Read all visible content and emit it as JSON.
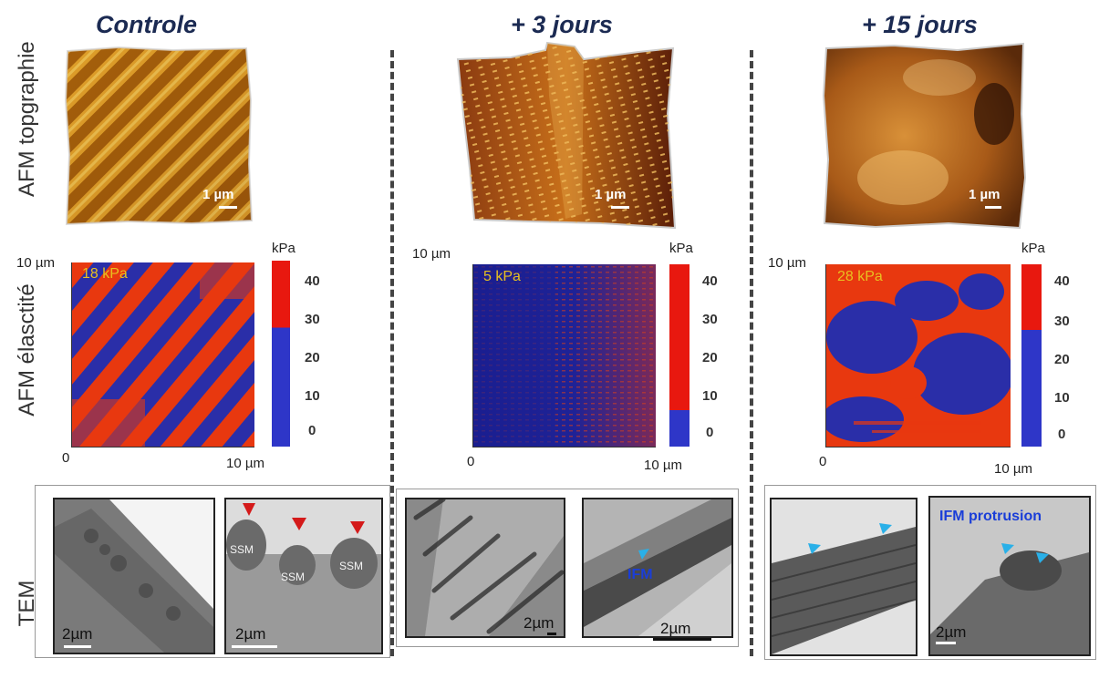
{
  "columns": [
    {
      "title": "Controle",
      "topo_scale": "1 µm",
      "kpa": "18 kPa",
      "ax_left": "0",
      "ax_right": "10 µm",
      "ax_top": "10 µm",
      "kpa_color": "#e8c020",
      "tem_scale_a": "2µm",
      "tem_scale_b": "2µm",
      "ssm": [
        "SSM",
        "SSM",
        "SSM"
      ]
    },
    {
      "title": "+ 3 jours",
      "topo_scale": "1 µm",
      "kpa": "5 kPa",
      "ax_left": "0",
      "ax_right": "10 µm",
      "ax_top": "10 µm",
      "kpa_color": "#e8c020",
      "tem_scale_a": "2µm",
      "tem_scale_b": "2µm",
      "ifm": "IFM"
    },
    {
      "title": "+ 15 jours",
      "topo_scale": "1 µm",
      "kpa": "28 kPa",
      "ax_left": "0",
      "ax_right": "10 µm",
      "ax_top": "10 µm",
      "kpa_color": "#e8c020",
      "tem_scale_a": "",
      "tem_scale_b": "2µm",
      "ifm_protrusion": "IFM protrusion"
    }
  ],
  "rows": {
    "topo": "AFM topgraphie",
    "elasticity": "AFM élasctité",
    "tem": "TEM"
  },
  "colorbar": {
    "unit": "kPa",
    "ticks": [
      "40",
      "30",
      "20",
      "10",
      "0"
    ]
  },
  "colors": {
    "title": "#1b2a52",
    "stiff": "#e8380f",
    "soft": "#2a2ea8",
    "arrow_red": "#d41a1a",
    "arrow_blue": "#2ab0e8"
  }
}
